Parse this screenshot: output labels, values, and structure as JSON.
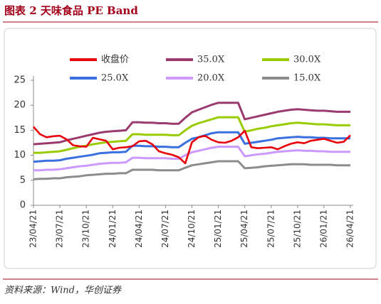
{
  "chart_data": {
    "type": "line",
    "title": "图表 2  天味食品 PE Band",
    "source": "资料来源：Wind，华创证券",
    "categories": [
      "23/04/21",
      null,
      null,
      null,
      "23/07/21",
      null,
      null,
      null,
      "23/10/21",
      null,
      null,
      null,
      "24/01/21",
      null,
      null,
      null,
      "24/04/21",
      null,
      null,
      null,
      "24/07/21",
      null,
      null,
      null,
      "24/10/21",
      null,
      null,
      null,
      "25/01/21",
      null,
      null,
      null,
      "25/04/21",
      null,
      null,
      null,
      "25/07/21",
      null,
      null,
      null,
      "25/10/21",
      null,
      null,
      null,
      "26/01/21",
      null,
      null,
      null,
      "26/04/21"
    ],
    "ylim": [
      0,
      25
    ],
    "yticks": [
      0,
      5,
      10,
      15,
      20,
      25
    ],
    "series": [
      {
        "name": "收盘价",
        "color": "#e8000b",
        "values": [
          15.7,
          14.2,
          13.6,
          13.8,
          13.9,
          13.2,
          12.0,
          11.8,
          11.7,
          13.5,
          13.2,
          12.9,
          11.2,
          11.5,
          11.6,
          11.8,
          12.8,
          12.9,
          12.2,
          10.8,
          10.4,
          10.1,
          9.6,
          8.4,
          12.6,
          13.6,
          13.9,
          13.1,
          12.6,
          12.5,
          12.9,
          13.6,
          14.9,
          11.6,
          11.4,
          11.5,
          11.6,
          11.2,
          11.8,
          12.3,
          12.6,
          12.4,
          12.9,
          13.1,
          13.3,
          12.9,
          12.5,
          12.7,
          14.0
        ]
      },
      {
        "name": "35.0X",
        "color": "#9b3a6e",
        "values": [
          12.2,
          12.3,
          12.4,
          12.5,
          12.6,
          13.0,
          13.3,
          13.6,
          13.9,
          14.2,
          14.5,
          14.7,
          14.8,
          14.9,
          15.0,
          16.6,
          16.6,
          16.5,
          16.5,
          16.4,
          16.4,
          16.3,
          16.3,
          17.5,
          18.6,
          19.1,
          19.6,
          20.1,
          20.5,
          20.5,
          20.5,
          20.5,
          17.2,
          17.5,
          17.8,
          18.1,
          18.4,
          18.7,
          18.9,
          19.1,
          19.2,
          19.1,
          19.0,
          18.9,
          18.9,
          18.8,
          18.7,
          18.7,
          18.7
        ]
      },
      {
        "name": "30.0X",
        "color": "#99cc00",
        "values": [
          10.5,
          10.5,
          10.6,
          10.7,
          10.8,
          11.1,
          11.4,
          11.7,
          11.9,
          12.2,
          12.4,
          12.6,
          12.7,
          12.8,
          12.9,
          14.2,
          14.2,
          14.1,
          14.1,
          14.1,
          14.1,
          14.0,
          14.0,
          15.0,
          15.9,
          16.4,
          16.8,
          17.2,
          17.6,
          17.6,
          17.6,
          17.6,
          14.7,
          15.0,
          15.3,
          15.5,
          15.8,
          16.0,
          16.2,
          16.4,
          16.5,
          16.4,
          16.3,
          16.2,
          16.2,
          16.1,
          16.0,
          16.0,
          16.0
        ]
      },
      {
        "name": "25.0X",
        "color": "#3a6fe0",
        "values": [
          8.7,
          8.8,
          8.9,
          8.9,
          9.0,
          9.3,
          9.5,
          9.7,
          9.9,
          10.1,
          10.4,
          10.5,
          10.6,
          10.6,
          10.7,
          11.9,
          11.9,
          11.8,
          11.8,
          11.7,
          11.7,
          11.6,
          11.6,
          12.5,
          13.3,
          13.6,
          14.0,
          14.4,
          14.6,
          14.6,
          14.6,
          14.6,
          12.3,
          12.5,
          12.7,
          12.9,
          13.1,
          13.4,
          13.5,
          13.6,
          13.7,
          13.6,
          13.6,
          13.5,
          13.5,
          13.4,
          13.4,
          13.4,
          13.4
        ]
      },
      {
        "name": "20.0X",
        "color": "#cc99ff",
        "values": [
          7.0,
          7.0,
          7.1,
          7.1,
          7.2,
          7.4,
          7.6,
          7.8,
          7.9,
          8.1,
          8.3,
          8.4,
          8.5,
          8.5,
          8.6,
          9.5,
          9.5,
          9.4,
          9.4,
          9.4,
          9.4,
          9.3,
          9.3,
          10.0,
          10.6,
          10.9,
          11.2,
          11.5,
          11.7,
          11.7,
          11.7,
          11.7,
          9.8,
          10.0,
          10.2,
          10.3,
          10.5,
          10.7,
          10.8,
          10.9,
          11.0,
          10.9,
          10.9,
          10.8,
          10.8,
          10.7,
          10.7,
          10.7,
          10.7
        ]
      },
      {
        "name": "15.0X",
        "color": "#8c8c8c",
        "values": [
          5.2,
          5.3,
          5.3,
          5.4,
          5.4,
          5.6,
          5.7,
          5.8,
          6.0,
          6.1,
          6.2,
          6.3,
          6.3,
          6.4,
          6.4,
          7.1,
          7.1,
          7.1,
          7.1,
          7.0,
          7.0,
          7.0,
          7.0,
          7.5,
          8.0,
          8.2,
          8.4,
          8.6,
          8.8,
          8.8,
          8.8,
          8.8,
          7.4,
          7.5,
          7.6,
          7.8,
          7.9,
          8.0,
          8.1,
          8.2,
          8.2,
          8.2,
          8.1,
          8.1,
          8.1,
          8.1,
          8.0,
          8.0,
          8.0
        ]
      }
    ]
  }
}
